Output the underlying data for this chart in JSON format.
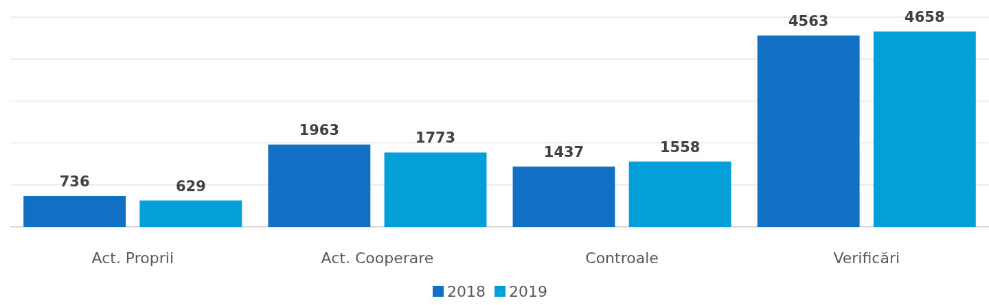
{
  "chart_data": {
    "type": "bar",
    "categories": [
      "Act. Proprii",
      "Act. Cooperare",
      "Controale",
      "Verificări"
    ],
    "series": [
      {
        "name": "2018",
        "color": "#1170c4",
        "values": [
          736,
          1963,
          1437,
          4563
        ]
      },
      {
        "name": "2019",
        "color": "#039fd9",
        "values": [
          629,
          1773,
          1558,
          4658
        ]
      }
    ],
    "ylim": [
      0,
      5000
    ],
    "yticks": [
      {
        "value": 0,
        "label": null
      },
      {
        "value": 1000,
        "label": null
      },
      {
        "value": 2000,
        "label": null
      },
      {
        "value": 3000,
        "label": null
      },
      {
        "value": 4000,
        "label": null
      },
      {
        "value": 5000,
        "label": null
      }
    ],
    "tick_labels": "x",
    "grid": "y",
    "data_labels": true,
    "legend": "bottom"
  }
}
